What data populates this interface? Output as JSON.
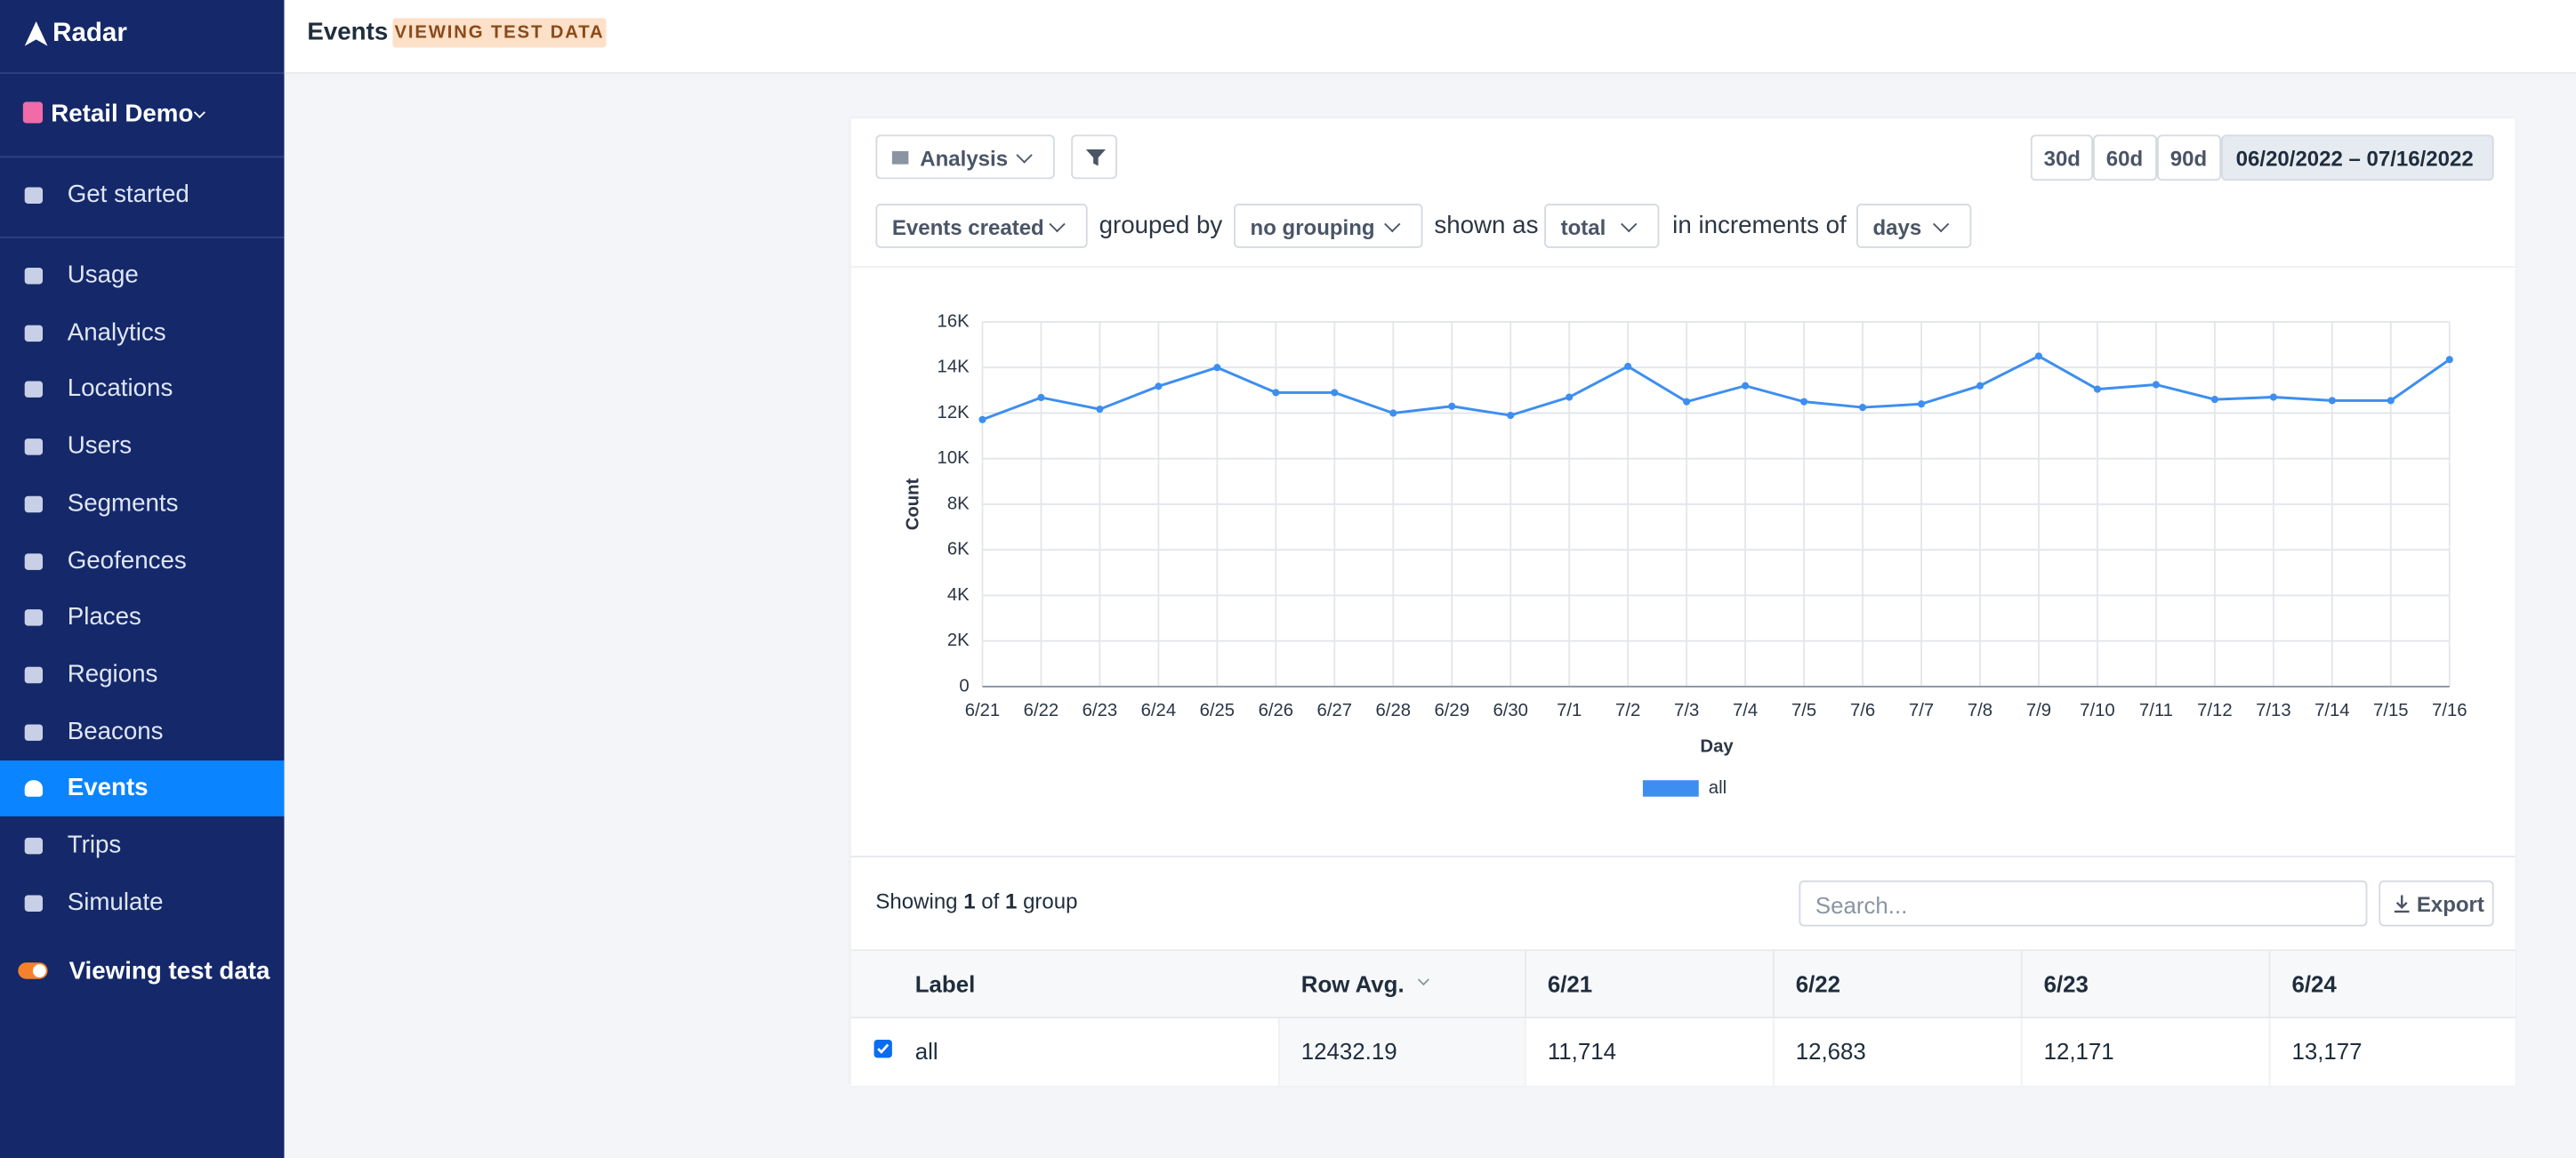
{
  "sidebar": {
    "brand": "Radar",
    "project": "Retail Demo",
    "top_item": "Get started",
    "items": [
      {
        "label": "Usage",
        "active": false
      },
      {
        "label": "Analytics",
        "active": false
      },
      {
        "label": "Locations",
        "active": false
      },
      {
        "label": "Users",
        "active": false
      },
      {
        "label": "Segments",
        "active": false
      },
      {
        "label": "Geofences",
        "active": false
      },
      {
        "label": "Places",
        "active": false
      },
      {
        "label": "Regions",
        "active": false
      },
      {
        "label": "Beacons",
        "active": false
      },
      {
        "label": "Events",
        "active": true
      },
      {
        "label": "Trips",
        "active": false
      },
      {
        "label": "Simulate",
        "active": false
      }
    ],
    "toggle": "Viewing test data"
  },
  "header": {
    "title": "Events",
    "badge": "VIEWING TEST DATA"
  },
  "toolbar": {
    "view": "Analysis",
    "ranges": [
      "30d",
      "60d",
      "90d"
    ],
    "date_range": "06/20/2022 – 07/16/2022",
    "metric": "Events created",
    "grouped_by_label": "grouped by",
    "grouping": "no grouping",
    "shown_as_label": "shown as",
    "shown_as": "total",
    "increments_label": "in increments of",
    "increment": "days"
  },
  "chart_data": {
    "type": "line",
    "xlabel": "Day",
    "ylabel": "Count",
    "categories": [
      "6/21",
      "6/22",
      "6/23",
      "6/24",
      "6/25",
      "6/26",
      "6/27",
      "6/28",
      "6/29",
      "6/30",
      "7/1",
      "7/2",
      "7/3",
      "7/4",
      "7/5",
      "7/6",
      "7/7",
      "7/8",
      "7/9",
      "7/10",
      "7/11",
      "7/12",
      "7/13",
      "7/14",
      "7/15",
      "7/16"
    ],
    "series": [
      {
        "name": "all",
        "color": "#3d8ef0",
        "values": [
          11714,
          12683,
          12171,
          13177,
          14000,
          12900,
          12900,
          12000,
          12300,
          11900,
          12700,
          14050,
          12500,
          13200,
          12500,
          12250,
          12400,
          13200,
          14500,
          13050,
          13250,
          12600,
          12700,
          12550,
          12550,
          14350
        ]
      }
    ],
    "ylim": [
      0,
      16000
    ],
    "yticks": [
      0,
      {
        "value": 2000,
        "label": "2K"
      },
      {
        "value": 4000,
        "label": "4K"
      },
      {
        "value": 6000,
        "label": "6K"
      },
      {
        "value": 8000,
        "label": "8K"
      },
      {
        "value": 10000,
        "label": "10K"
      },
      {
        "value": 12000,
        "label": "12K"
      },
      {
        "value": 14000,
        "label": "14K"
      },
      {
        "value": 16000,
        "label": "16K"
      }
    ],
    "grid": true
  },
  "table": {
    "summary": [
      "Showing",
      "1",
      "of",
      "1",
      "group"
    ],
    "search": "Search...",
    "export": "Export",
    "columns": [
      "Label",
      "Row Avg.",
      "6/21",
      "6/22",
      "6/23",
      "6/24"
    ],
    "rows": [
      [
        "all",
        "12432.19",
        "11,714",
        "12,683",
        "12,171",
        "13,177"
      ]
    ]
  }
}
